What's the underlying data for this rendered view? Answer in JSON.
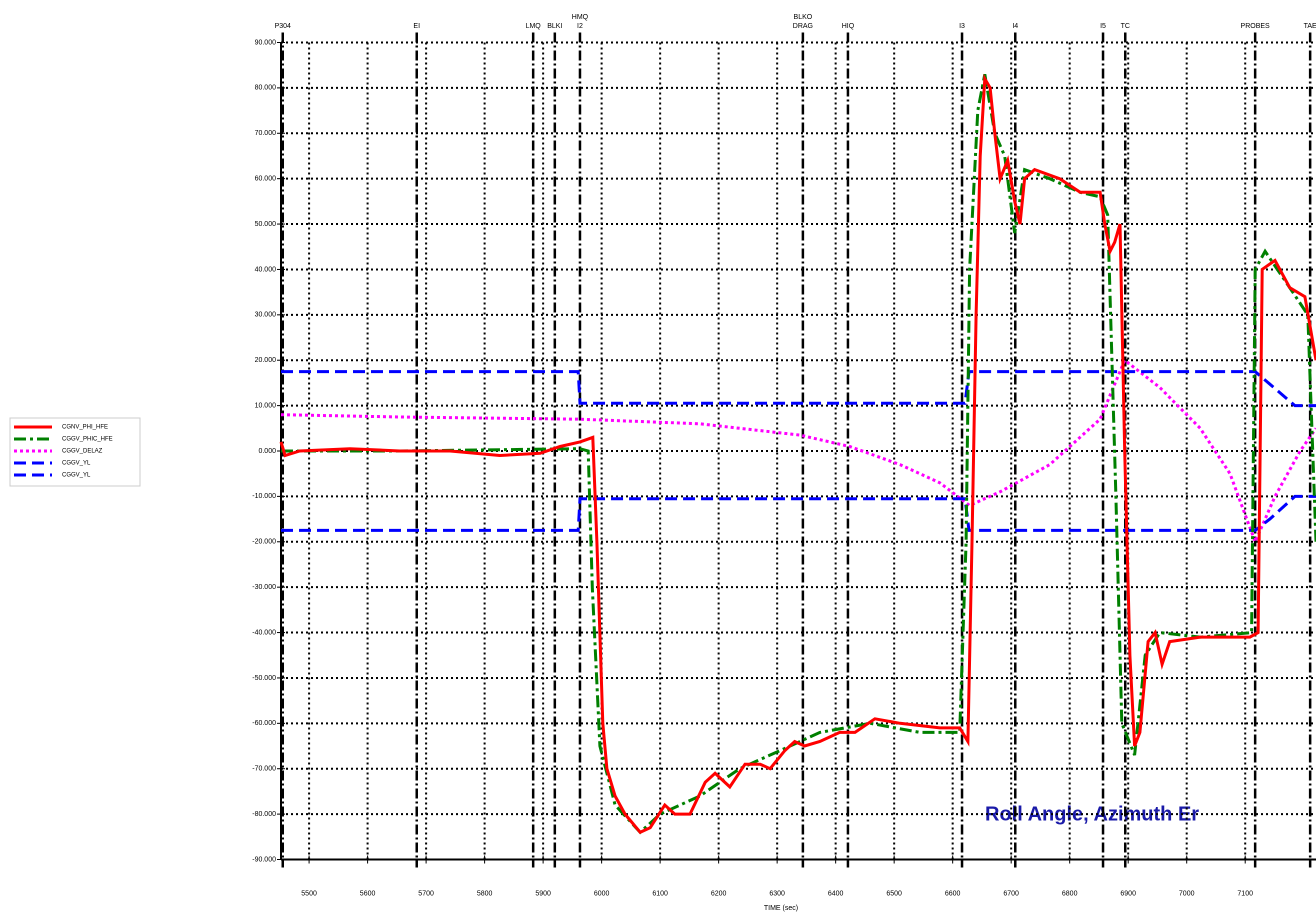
{
  "chart_data": {
    "type": "line",
    "xlabel": "TIME (sec)",
    "annotation": "Roll Angle, Azimuth Er",
    "xlim": [
      5452,
      7221
    ],
    "ylim": [
      -90,
      90
    ],
    "xticks": [
      5500,
      5600,
      5700,
      5800,
      5900,
      6000,
      6100,
      6200,
      6300,
      6400,
      6500,
      6600,
      6700,
      6800,
      6900,
      7000,
      7100
    ],
    "yticks": [
      {
        "value": 90,
        "label": "90.000"
      },
      {
        "value": 80,
        "label": "80.000"
      },
      {
        "value": 70,
        "label": "70.000"
      },
      {
        "value": 60,
        "label": "60.000"
      },
      {
        "value": 50,
        "label": "50.000"
      },
      {
        "value": 40,
        "label": "40.000"
      },
      {
        "value": 30,
        "label": "30.000"
      },
      {
        "value": 20,
        "label": "20.000"
      },
      {
        "value": 10,
        "label": "10.000"
      },
      {
        "value": 0,
        "label": "0.000"
      },
      {
        "value": -10,
        "label": "-10.000"
      },
      {
        "value": -20,
        "label": "-20.000"
      },
      {
        "value": -30,
        "label": "-30.000"
      },
      {
        "value": -40,
        "label": "-40.000"
      },
      {
        "value": -50,
        "label": "-50.000"
      },
      {
        "value": -60,
        "label": "-60.000"
      },
      {
        "value": -70,
        "label": "-70.000"
      },
      {
        "value": -80,
        "label": "-80.000"
      },
      {
        "value": -90,
        "label": "-90.000"
      }
    ],
    "grid": true,
    "events": [
      {
        "labels": [
          "P304"
        ],
        "x": 5455
      },
      {
        "labels": [
          "EI"
        ],
        "x": 5684
      },
      {
        "labels": [
          "LMQ"
        ],
        "x": 5883
      },
      {
        "labels": [
          "BLKI"
        ],
        "x": 5920
      },
      {
        "labels": [
          "HMQ",
          "I2"
        ],
        "x": 5963
      },
      {
        "labels": [
          "BLKO",
          "DRAG"
        ],
        "x": 6344
      },
      {
        "labels": [
          "HIQ"
        ],
        "x": 6421
      },
      {
        "labels": [
          "I3"
        ],
        "x": 6616
      },
      {
        "labels": [
          "I4"
        ],
        "x": 6707
      },
      {
        "labels": [
          "I5"
        ],
        "x": 6857
      },
      {
        "labels": [
          "TC"
        ],
        "x": 6895
      },
      {
        "labels": [
          "PROBES"
        ],
        "x": 7117
      },
      {
        "labels": [
          "TAE"
        ],
        "x": 7211
      }
    ],
    "series": [
      {
        "name": "CGNV_PHI_HFE",
        "color": "#ff0000",
        "style": "solid",
        "x": [
          5452,
          5459,
          5484,
          5570,
          5655,
          5741,
          5826,
          5895,
          5929,
          5963,
          5985,
          5992,
          6002,
          6009,
          6023,
          6040,
          6066,
          6083,
          6108,
          6125,
          6151,
          6177,
          6194,
          6219,
          6245,
          6271,
          6288,
          6313,
          6330,
          6347,
          6373,
          6407,
          6433,
          6467,
          6510,
          6578,
          6612,
          6626,
          6633,
          6640,
          6647,
          6655,
          6664,
          6672,
          6681,
          6694,
          6706,
          6715,
          6723,
          6740,
          6783,
          6818,
          6852,
          6860,
          6869,
          6877,
          6886,
          6894,
          6903,
          6911,
          6920,
          6934,
          6946,
          6958,
          6971,
          7023,
          7108,
          7122,
          7129,
          7151,
          7176,
          7202,
          7221
        ],
        "values": [
          2,
          -1,
          0,
          0.5,
          0,
          0,
          -1,
          -0.5,
          1,
          2,
          3,
          -20,
          -60,
          -70,
          -76,
          -80,
          -84,
          -83,
          -78,
          -80,
          -80,
          -73,
          -71,
          -74,
          -69,
          -69,
          -70,
          -66,
          -64,
          -65,
          -64,
          -62,
          -62,
          -59,
          -60,
          -61,
          -61,
          -64,
          -20,
          30,
          65,
          82,
          80,
          70,
          60,
          64,
          55,
          50,
          60,
          62,
          60,
          57,
          57,
          50,
          44,
          46,
          50,
          0,
          -45,
          -65,
          -62,
          -42,
          -40,
          -47,
          -42,
          -41,
          -41,
          -40,
          40,
          42,
          36,
          34,
          20
        ]
      },
      {
        "name": "CGGV_PHIC_HFE",
        "color": "#008000",
        "style": "dashdot",
        "x": [
          5452,
          5655,
          5963,
          5977,
          5984,
          5997,
          6023,
          6066,
          6100,
          6168,
          6236,
          6305,
          6373,
          6459,
          6544,
          6612,
          6623,
          6629,
          6643,
          6655,
          6672,
          6689,
          6706,
          6723,
          6766,
          6818,
          6852,
          6865,
          6879,
          6889,
          6911,
          6929,
          6954,
          7023,
          7111,
          7117,
          7134,
          7176,
          7207,
          7221
        ],
        "values": [
          0,
          0,
          0.5,
          0,
          -30,
          -65,
          -78,
          -84,
          -80,
          -76,
          -70,
          -66,
          -62,
          -60,
          -62,
          -62,
          -20,
          40,
          75,
          83,
          70,
          65,
          48,
          62,
          60,
          57,
          56,
          52,
          -10,
          -60,
          -67,
          -45,
          -40,
          -41,
          -40,
          40,
          44,
          36,
          30,
          -20
        ]
      },
      {
        "name": "CGGV_DELAZ",
        "color": "#ff00ff",
        "style": "dot",
        "x": [
          5452,
          5655,
          5963,
          6168,
          6339,
          6424,
          6510,
          6578,
          6629,
          6681,
          6766,
          6852,
          6894,
          6954,
          7023,
          7074,
          7117,
          7151,
          7194,
          7221
        ],
        "values": [
          8,
          7.5,
          7,
          6,
          3.5,
          1,
          -3,
          -7,
          -12,
          -9,
          -3,
          7,
          20,
          14,
          5,
          -5,
          -20,
          -10,
          0,
          5
        ]
      },
      {
        "name": "CGGV_YL",
        "color": "#0000ff",
        "style": "dash",
        "x": [
          5452,
          5960,
          5963,
          6621,
          6628,
          7117,
          7185,
          7221
        ],
        "values": [
          17.5,
          17.5,
          10.5,
          10.5,
          17.5,
          17.5,
          10,
          10
        ]
      },
      {
        "name": "CGGV_YL",
        "color": "#0000ff",
        "style": "dash",
        "x": [
          5452,
          5960,
          5963,
          6621,
          6628,
          7117,
          7142,
          7185,
          7221
        ],
        "values": [
          -17.5,
          -17.5,
          -10.5,
          -10.5,
          -17.5,
          -17.5,
          -15,
          -10,
          -10
        ]
      }
    ]
  }
}
